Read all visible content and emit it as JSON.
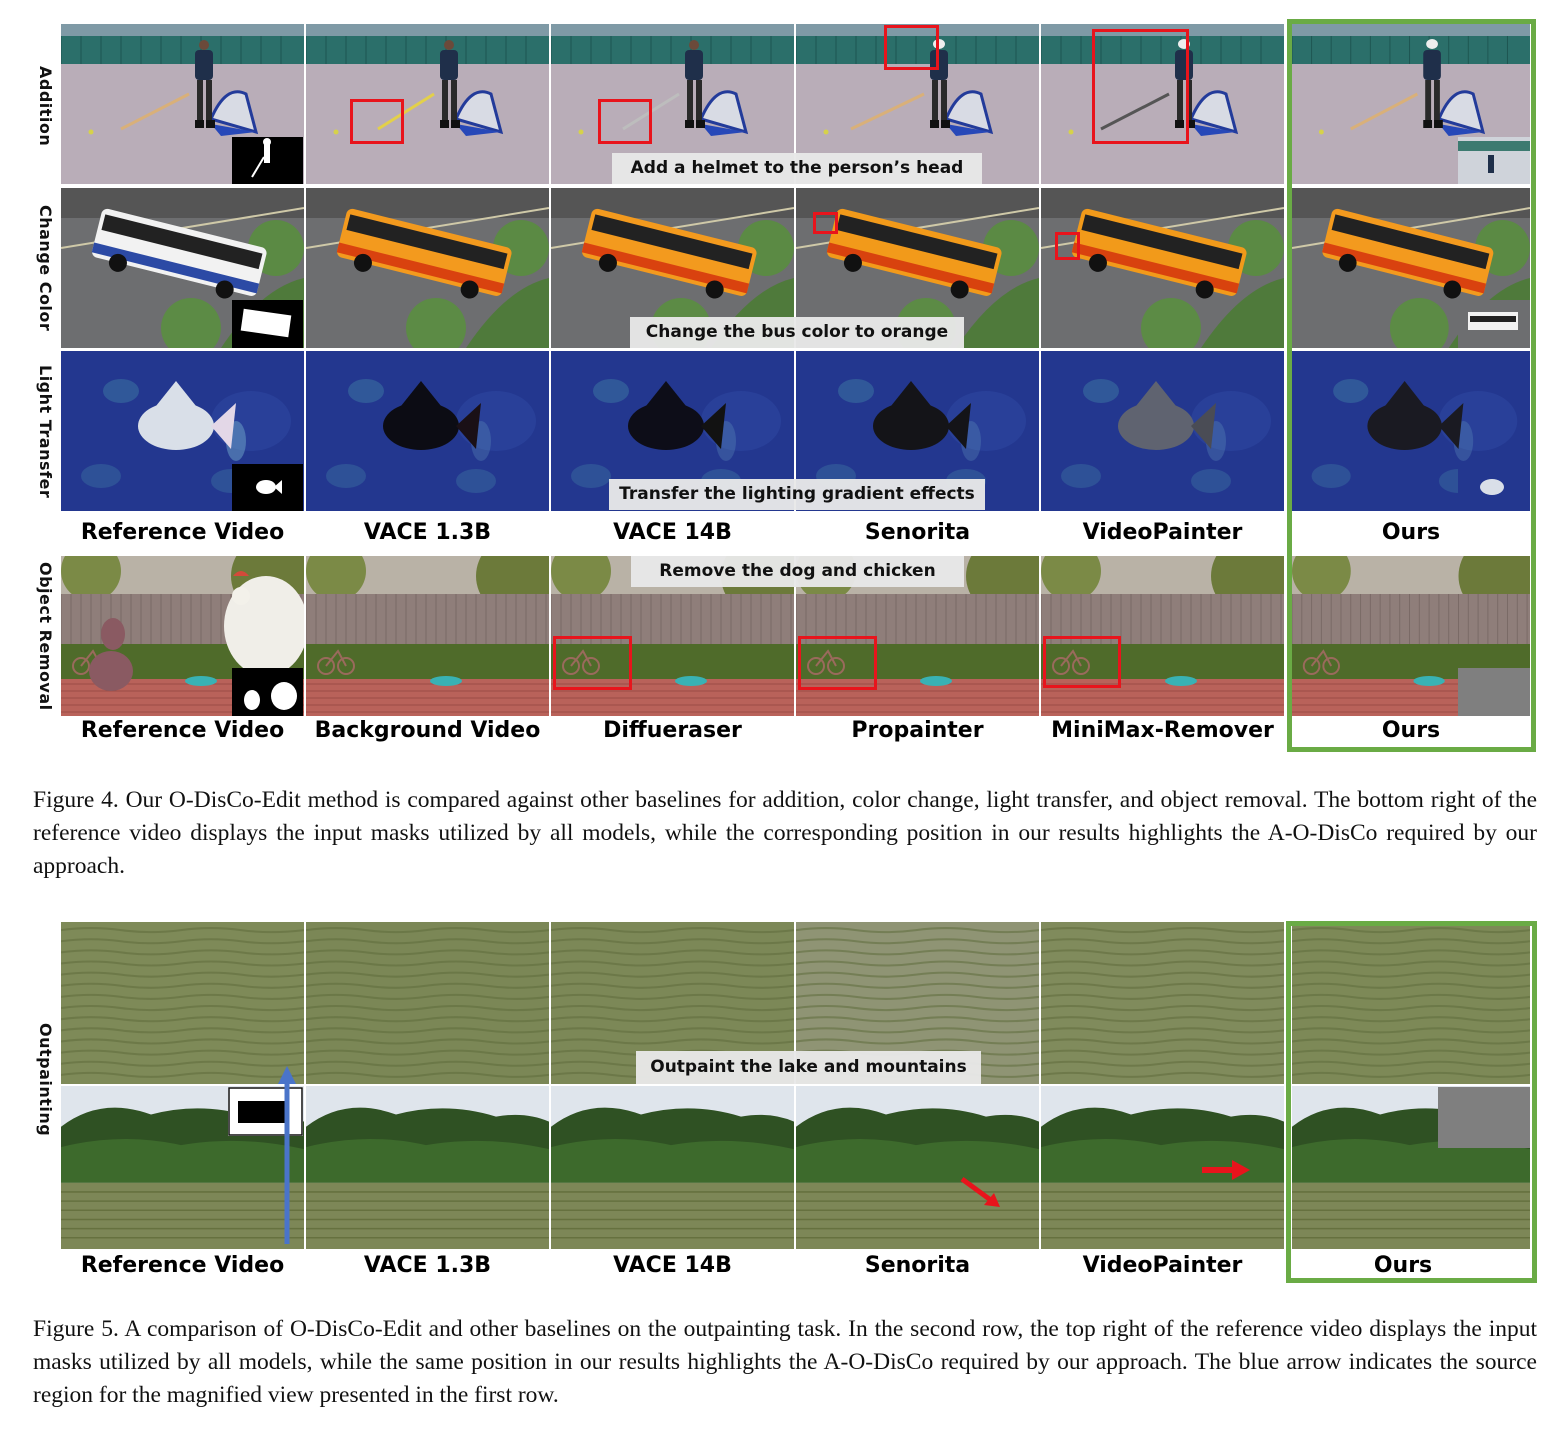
{
  "figure4": {
    "row_labels": [
      "Addition",
      "Change Color",
      "Light Transfer",
      "Object Removal"
    ],
    "prompts": [
      "Add a helmet to the person’s head",
      "Change the bus color to orange",
      "Transfer the lighting gradient effects",
      "Remove the dog and chicken"
    ],
    "headers_top": [
      "Reference Video",
      "VACE 1.3B",
      "VACE 14B",
      "Senorita",
      "VideoPainter",
      "Ours"
    ],
    "headers_bottom": [
      "Reference Video",
      "Background Video",
      "Diffueraser",
      "Propainter",
      "MiniMax-Remover",
      "Ours"
    ],
    "caption": "Figure 4. Our O-DisCo-Edit method is compared against other baselines for addition, color change, light transfer, and object removal. The bottom right of the reference video displays the input masks utilized by all models, while the corresponding position in our results highlights the A-O-DisCo required by our approach.",
    "highlight_color": "#6aab45",
    "marker_color": "#e8141c"
  },
  "figure5": {
    "row_label": "Outpainting",
    "prompt": "Outpaint the lake and mountains",
    "headers": [
      "Reference Video",
      "VACE 1.3B",
      "VACE 14B",
      "Senorita",
      "VideoPainter",
      "Ours"
    ],
    "caption": "Figure 5. A comparison of O-DisCo-Edit and other baselines on the outpainting task. In the second row, the top right of the reference video displays the input masks utilized by all models, while the same position in our results highlights the A-O-DisCo required by our approach. The blue arrow indicates the source region for the magnified view presented in the first row.",
    "arrow_color": "#4a74c9"
  }
}
